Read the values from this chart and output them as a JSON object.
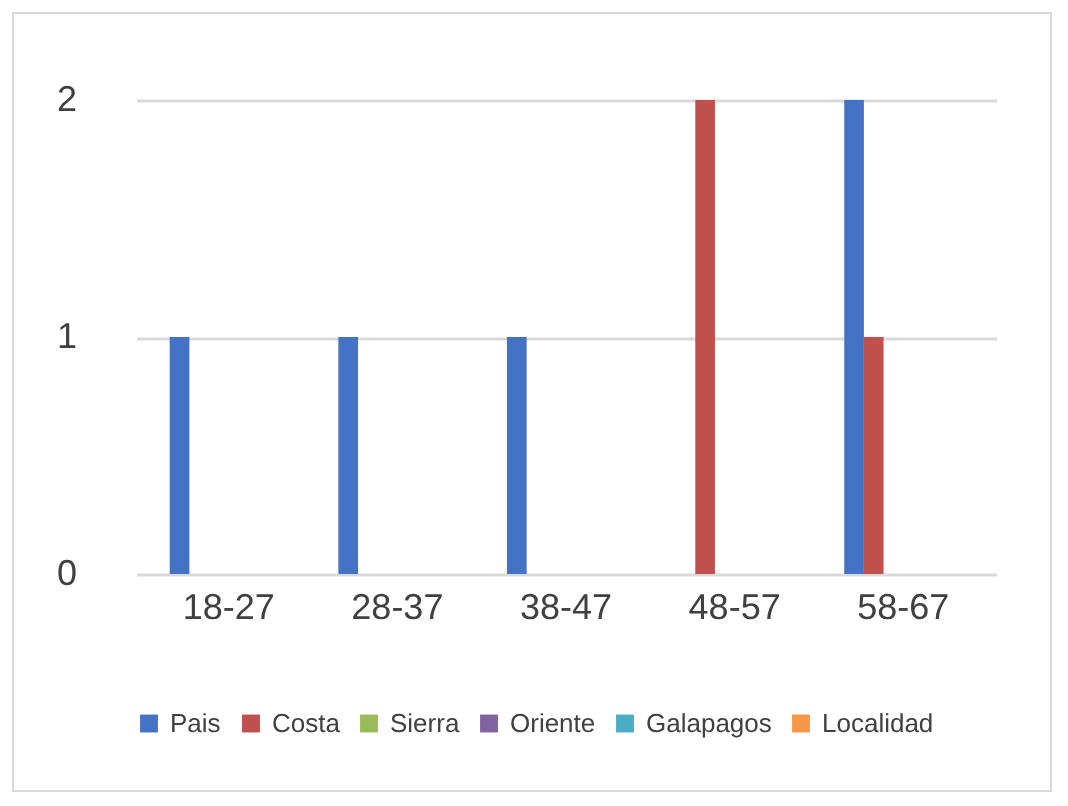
{
  "chart_data": {
    "type": "bar",
    "categories": [
      "18-27",
      "28-37",
      "38-47",
      "48-57",
      "58-67"
    ],
    "series": [
      {
        "name": "Pais",
        "color": "#4472c4",
        "values": [
          1,
          1,
          1,
          0,
          2
        ]
      },
      {
        "name": "Costa",
        "color": "#c0504d",
        "values": [
          0,
          0,
          0,
          2,
          1
        ]
      },
      {
        "name": "Sierra",
        "color": "#9bbb59",
        "values": [
          0,
          0,
          0,
          0,
          0
        ]
      },
      {
        "name": "Oriente",
        "color": "#8064a2",
        "values": [
          0,
          0,
          0,
          0,
          0
        ]
      },
      {
        "name": "Galapagos",
        "color": "#4bacc6",
        "values": [
          0,
          0,
          0,
          0,
          0
        ]
      },
      {
        "name": "Localidad",
        "color": "#f79646",
        "values": [
          0,
          0,
          0,
          0,
          0
        ]
      }
    ],
    "ylim": [
      0,
      2
    ],
    "yticks": [
      0,
      1,
      2
    ],
    "grid": "y",
    "legend": "bottom"
  }
}
